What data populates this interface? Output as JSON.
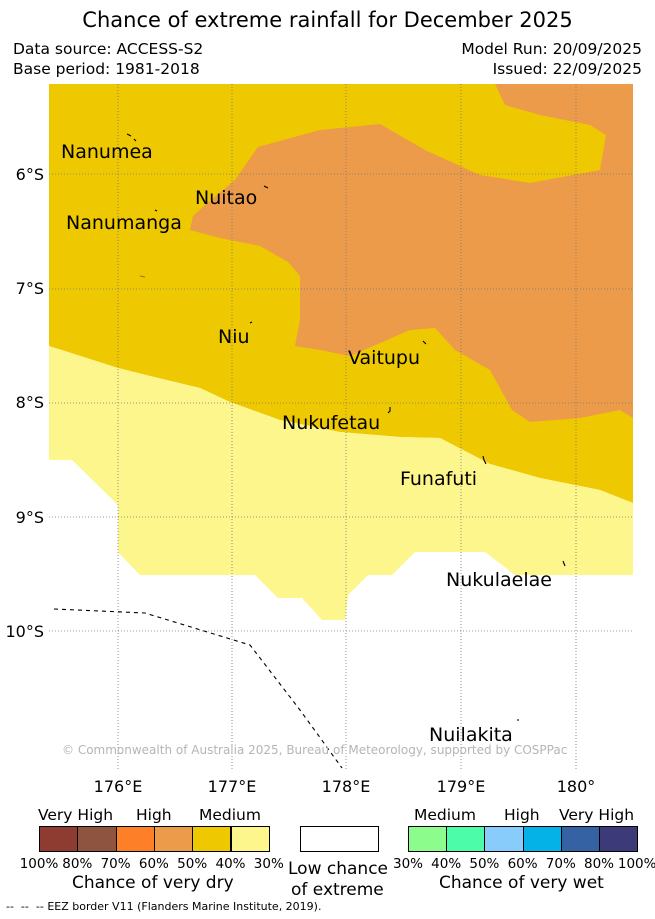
{
  "title": "Chance of extreme rainfall for December 2025",
  "meta": {
    "data_source": "Data source: ACCESS-S2",
    "base_period": "Base period: 1981-2018",
    "model_run": "Model Run: 20/09/2025",
    "issued": "Issued: 22/09/2025"
  },
  "map": {
    "towns": [
      "Nanumea",
      "Nuitao",
      "Nanumanga",
      "Niu",
      "Vaitupu",
      "Nukufetau",
      "Funafuti",
      "Nukulaelae",
      "Nuilakita"
    ],
    "lat_ticks": [
      "6°S",
      "7°S",
      "8°S",
      "9°S",
      "10°S"
    ],
    "lon_ticks": [
      "176°E",
      "177°E",
      "178°E",
      "179°E",
      "180°"
    ],
    "copyright": "© Commonwealth of Australia 2025, Bureau of Meteorology, supported by COSPPac",
    "colors": {
      "medium_dry": "#eec800",
      "high_dry": "#eb9b4a",
      "low_dry": "#fcf68c",
      "grid": "#777777"
    }
  },
  "legend": {
    "dry": {
      "heads": [
        "Very High",
        "High",
        "Medium"
      ],
      "percents": [
        "100%",
        "80%",
        "70%",
        "60%",
        "50%",
        "40%",
        "30%"
      ],
      "colors": [
        "#8e3b32",
        "#8f5440",
        "#fd7f27",
        "#eb9b4a",
        "#eec800",
        "#fcf68c"
      ],
      "caption": "Chance of very dry"
    },
    "low": {
      "caption_line1": "Low chance",
      "caption_line2": "of extreme"
    },
    "wet": {
      "heads": [
        "Medium",
        "High",
        "Very High"
      ],
      "percents": [
        "30%",
        "40%",
        "50%",
        "60%",
        "70%",
        "80%",
        "100%"
      ],
      "colors": [
        "#8cfc8c",
        "#4cfca8",
        "#88ccfc",
        "#04b2e8",
        "#3462a2",
        "#3d3a7a"
      ],
      "caption": "Chance of very wet"
    },
    "eez_note": "EEZ border V11 (Flanders Marine Institute, 2019)."
  }
}
